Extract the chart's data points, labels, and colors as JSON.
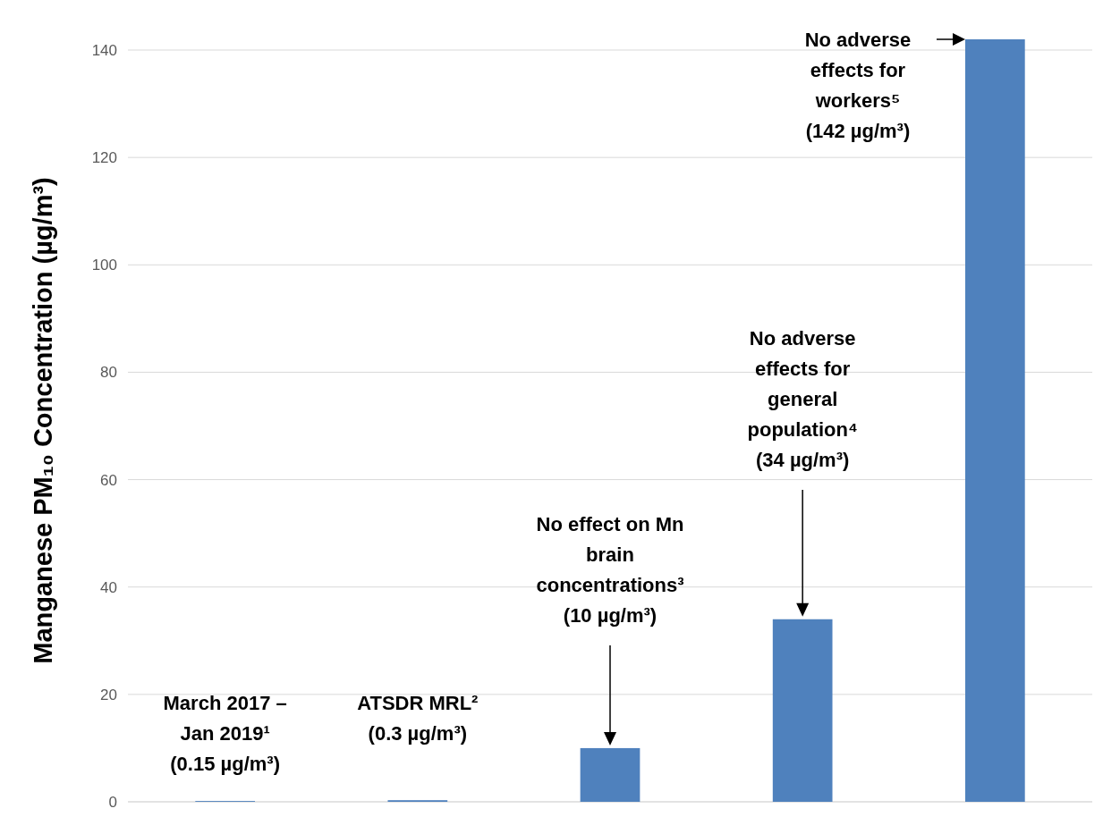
{
  "chart_data": {
    "type": "bar",
    "ylabel": "Manganese PM₁₀ Concentration (µg/m³)",
    "categories": [
      null,
      null,
      null,
      null,
      null
    ],
    "values": [
      0.15,
      0.3,
      10,
      34,
      142
    ],
    "color": "#4f81bd",
    "ylim": [
      0,
      142
    ],
    "yticks": [
      0,
      20,
      40,
      60,
      80,
      100,
      120,
      140
    ],
    "grid": "y",
    "annotations": [
      "March 2017 – Jan 2019¹ (0.15 µg/m³)",
      "ATSDR MRL² (0.3 µg/m³)",
      "No effect on Mn brain concentrations³ (10 µg/m³)",
      "No adverse effects for general population⁴ (34 µg/m³)",
      "No adverse effects for workers⁵ (142 µg/m³)"
    ]
  }
}
